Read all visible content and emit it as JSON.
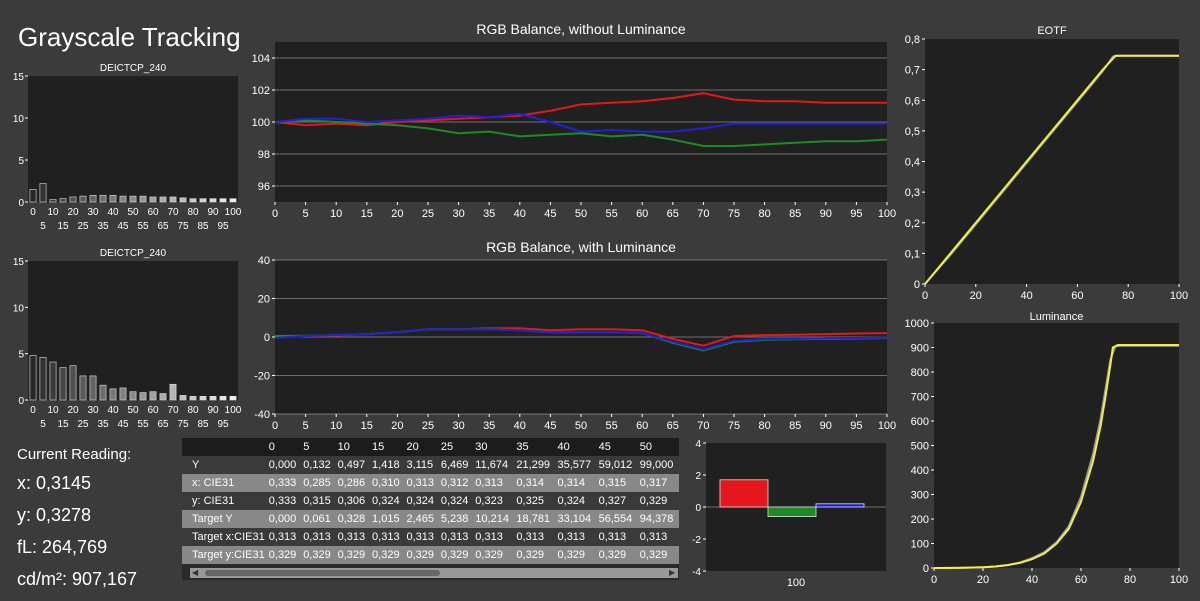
{
  "app_title": "Grayscale Tracking",
  "current_reading": {
    "label": "Current Reading:",
    "x": "x: 0,3145",
    "y": "y: 0,3278",
    "fl": "fL: 264,769",
    "cdm2": "cd/m²: 907,167"
  },
  "colors": {
    "red": "#e3171c",
    "green": "#1f8a26",
    "blue": "#2020d8",
    "yellow": "#f0f040",
    "gray": "#9a9a9a",
    "plot_bg": "#202020",
    "grid": "#bdbdbd"
  },
  "table": {
    "columns": [
      "0",
      "5",
      "10",
      "15",
      "20",
      "25",
      "30",
      "35",
      "40",
      "45",
      "50"
    ],
    "rows": [
      {
        "label": "Y",
        "values": [
          "0,000",
          "0,132",
          "0,497",
          "1,418",
          "3,115",
          "6,469",
          "11,674",
          "21,299",
          "35,577",
          "59,012",
          "99,000"
        ]
      },
      {
        "label": "x: CIE31",
        "values": [
          "0,333",
          "0,285",
          "0,286",
          "0,310",
          "0,313",
          "0,312",
          "0,313",
          "0,314",
          "0,314",
          "0,315",
          "0,317"
        ]
      },
      {
        "label": "y: CIE31",
        "values": [
          "0,333",
          "0,315",
          "0,306",
          "0,324",
          "0,324",
          "0,324",
          "0,323",
          "0,325",
          "0,324",
          "0,327",
          "0,329"
        ]
      },
      {
        "label": "Target Y",
        "values": [
          "0,000",
          "0,061",
          "0,328",
          "1,015",
          "2,465",
          "5,238",
          "10,214",
          "18,781",
          "33,104",
          "56,554",
          "94,378"
        ]
      },
      {
        "label": "Target x:CIE31",
        "values": [
          "0,313",
          "0,313",
          "0,313",
          "0,313",
          "0,313",
          "0,313",
          "0,313",
          "0,313",
          "0,313",
          "0,313",
          "0,313"
        ]
      },
      {
        "label": "Target y:CIE31",
        "values": [
          "0,329",
          "0,329",
          "0,329",
          "0,329",
          "0,329",
          "0,329",
          "0,329",
          "0,329",
          "0,329",
          "0,329",
          "0,329"
        ]
      }
    ]
  },
  "chart_data": [
    {
      "id": "deictcp-1",
      "type": "bar",
      "title": "DEICTCP_240",
      "categories": [
        "0",
        "5",
        "10",
        "15",
        "20",
        "25",
        "30",
        "35",
        "40",
        "45",
        "50",
        "55",
        "60",
        "65",
        "70",
        "75",
        "80",
        "85",
        "90",
        "95",
        "100"
      ],
      "tick_labels_row1": [
        "0",
        "10",
        "20",
        "30",
        "40",
        "50",
        "60",
        "70",
        "80",
        "90",
        "100"
      ],
      "tick_labels_row2": [
        "5",
        "15",
        "25",
        "35",
        "45",
        "55",
        "65",
        "75",
        "85",
        "95"
      ],
      "values": [
        1.5,
        2.2,
        0.3,
        0.4,
        0.6,
        0.7,
        0.8,
        0.8,
        0.8,
        0.7,
        0.7,
        0.7,
        0.6,
        0.6,
        0.6,
        0.5,
        0.4,
        0.4,
        0.4,
        0.4,
        0.4
      ],
      "ylim": [
        0,
        15
      ],
      "yticks": [
        "0",
        "5",
        "10",
        "15"
      ]
    },
    {
      "id": "deictcp-2",
      "type": "bar",
      "title": "DEICTCP_240",
      "categories": [
        "0",
        "5",
        "10",
        "15",
        "20",
        "25",
        "30",
        "35",
        "40",
        "45",
        "50",
        "55",
        "60",
        "65",
        "70",
        "75",
        "80",
        "85",
        "90",
        "95",
        "100"
      ],
      "tick_labels_row1": [
        "0",
        "10",
        "20",
        "30",
        "40",
        "50",
        "60",
        "70",
        "80",
        "90",
        "100"
      ],
      "tick_labels_row2": [
        "5",
        "15",
        "25",
        "35",
        "45",
        "55",
        "65",
        "75",
        "85",
        "95"
      ],
      "values": [
        4.8,
        4.6,
        4.1,
        3.5,
        3.7,
        2.6,
        2.6,
        1.6,
        1.2,
        1.3,
        0.9,
        0.8,
        0.9,
        0.7,
        1.7,
        0.5,
        0.4,
        0.4,
        0.4,
        0.4,
        0.4
      ],
      "ylim": [
        0,
        15
      ],
      "yticks": [
        "0",
        "5",
        "10",
        "15"
      ]
    },
    {
      "id": "rgb-balance-no-lum",
      "type": "line",
      "title": "RGB Balance, without Luminance",
      "x": [
        0,
        5,
        10,
        15,
        20,
        25,
        30,
        35,
        40,
        45,
        50,
        55,
        60,
        65,
        70,
        75,
        80,
        85,
        90,
        95,
        100
      ],
      "xticks": [
        "0",
        "5",
        "10",
        "15",
        "20",
        "25",
        "30",
        "35",
        "40",
        "45",
        "50",
        "55",
        "60",
        "65",
        "70",
        "75",
        "80",
        "85",
        "90",
        "95",
        "100"
      ],
      "ylim": [
        95,
        105
      ],
      "yticks": [
        "96",
        "98",
        "100",
        "102",
        "104"
      ],
      "series": [
        {
          "color": "red",
          "values": [
            100,
            99.8,
            99.9,
            99.8,
            100,
            100.1,
            100.2,
            100.3,
            100.4,
            100.7,
            101.1,
            101.2,
            101.3,
            101.5,
            101.8,
            101.4,
            101.3,
            101.3,
            101.2,
            101.2,
            101.2
          ]
        },
        {
          "color": "green",
          "values": [
            100,
            100.1,
            100,
            99.9,
            99.8,
            99.6,
            99.3,
            99.4,
            99.1,
            99.2,
            99.3,
            99.1,
            99.2,
            98.9,
            98.5,
            98.5,
            98.6,
            98.7,
            98.8,
            98.8,
            98.9
          ]
        },
        {
          "color": "blue",
          "values": [
            100,
            100.2,
            100.2,
            100,
            100.1,
            100.2,
            100.4,
            100.3,
            100.5,
            100,
            99.4,
            99.5,
            99.4,
            99.4,
            99.6,
            99.9,
            99.9,
            99.9,
            99.9,
            99.9,
            99.9
          ]
        }
      ]
    },
    {
      "id": "rgb-balance-lum",
      "type": "line",
      "title": "RGB Balance, with Luminance",
      "x": [
        0,
        5,
        10,
        15,
        20,
        25,
        30,
        35,
        40,
        45,
        50,
        55,
        60,
        65,
        70,
        75,
        80,
        85,
        90,
        95,
        100
      ],
      "xticks": [
        "0",
        "5",
        "10",
        "15",
        "20",
        "25",
        "30",
        "35",
        "40",
        "45",
        "50",
        "55",
        "60",
        "65",
        "70",
        "75",
        "80",
        "85",
        "90",
        "95",
        "100"
      ],
      "ylim": [
        -40,
        40
      ],
      "yticks": [
        "-40",
        "-20",
        "0",
        "20",
        "40"
      ],
      "series": [
        {
          "color": "red",
          "values": [
            0.5,
            0.5,
            0.8,
            1.5,
            2.5,
            4,
            4,
            4.5,
            4.5,
            3.5,
            4,
            4,
            3.5,
            -1,
            -4.5,
            0.5,
            1,
            1.2,
            1.5,
            1.8,
            2
          ]
        },
        {
          "color": "green",
          "values": [
            0.5,
            0.7,
            1,
            1.5,
            2.5,
            4,
            4,
            4,
            3.5,
            2.5,
            2.5,
            2.5,
            2,
            -3,
            -7,
            -2.5,
            -1.5,
            -1.2,
            -1,
            -0.8,
            -0.5
          ]
        },
        {
          "color": "blue",
          "values": [
            -0.5,
            0.5,
            1,
            1.5,
            2.5,
            4,
            4,
            4,
            3.5,
            2.5,
            2.5,
            2.5,
            2,
            -2.5,
            -6.5,
            -2,
            -1.2,
            -1,
            -0.7,
            -0.5,
            -0.3
          ]
        }
      ]
    },
    {
      "id": "rgb-bar-100",
      "type": "bar",
      "categories": [
        "100"
      ],
      "ylim": [
        -4,
        4
      ],
      "yticks": [
        "-4",
        "-2",
        "0",
        "2",
        "4"
      ],
      "xlabel": "100",
      "series": [
        {
          "color": "red",
          "values": [
            1.7
          ]
        },
        {
          "color": "green",
          "values": [
            -0.6
          ]
        },
        {
          "color": "blue",
          "values": [
            0.2
          ]
        }
      ]
    },
    {
      "id": "eotf",
      "type": "line",
      "title": "EOTF",
      "xlim": [
        0,
        100
      ],
      "ylim": [
        0,
        0.8
      ],
      "xticks": [
        "0",
        "20",
        "40",
        "60",
        "80",
        "100"
      ],
      "yticks": [
        "0",
        "0,1",
        "0,2",
        "0,3",
        "0,4",
        "0,5",
        "0,6",
        "0,7",
        "0,8"
      ],
      "series": [
        {
          "color": "gray",
          "x": [
            0,
            10,
            20,
            30,
            40,
            50,
            60,
            70,
            74,
            76,
            80,
            90,
            100
          ],
          "values": [
            0,
            0.095,
            0.195,
            0.295,
            0.395,
            0.495,
            0.595,
            0.695,
            0.743,
            0.745,
            0.745,
            0.745,
            0.745
          ]
        },
        {
          "color": "yellow",
          "x": [
            0,
            10,
            20,
            30,
            40,
            50,
            60,
            70,
            75,
            80,
            90,
            100
          ],
          "values": [
            0,
            0.1,
            0.2,
            0.3,
            0.4,
            0.5,
            0.6,
            0.7,
            0.745,
            0.745,
            0.745,
            0.745
          ]
        }
      ]
    },
    {
      "id": "luminance",
      "type": "line",
      "title": "Luminance",
      "xlim": [
        0,
        100
      ],
      "ylim": [
        0,
        1000
      ],
      "xticks": [
        "0",
        "20",
        "40",
        "60",
        "80",
        "100"
      ],
      "yticks": [
        "0",
        "100",
        "200",
        "300",
        "400",
        "500",
        "600",
        "700",
        "800",
        "900",
        "1000"
      ],
      "series": [
        {
          "color": "gray",
          "x": [
            0,
            10,
            20,
            25,
            30,
            35,
            40,
            45,
            50,
            55,
            60,
            65,
            68,
            70,
            72,
            74,
            76,
            80,
            90,
            100
          ],
          "values": [
            0,
            0.5,
            3,
            6,
            12,
            22,
            40,
            64,
            105,
            170,
            290,
            470,
            610,
            730,
            850,
            905,
            907,
            907,
            907,
            907
          ]
        },
        {
          "color": "yellow",
          "x": [
            0,
            10,
            20,
            25,
            30,
            35,
            40,
            45,
            50,
            55,
            60,
            65,
            68,
            70,
            72,
            73,
            75,
            80,
            90,
            100
          ],
          "values": [
            0,
            0.5,
            3,
            6,
            12,
            21,
            36,
            59,
            99,
            160,
            270,
            440,
            580,
            700,
            830,
            900,
            910,
            910,
            910,
            910
          ]
        }
      ]
    }
  ]
}
